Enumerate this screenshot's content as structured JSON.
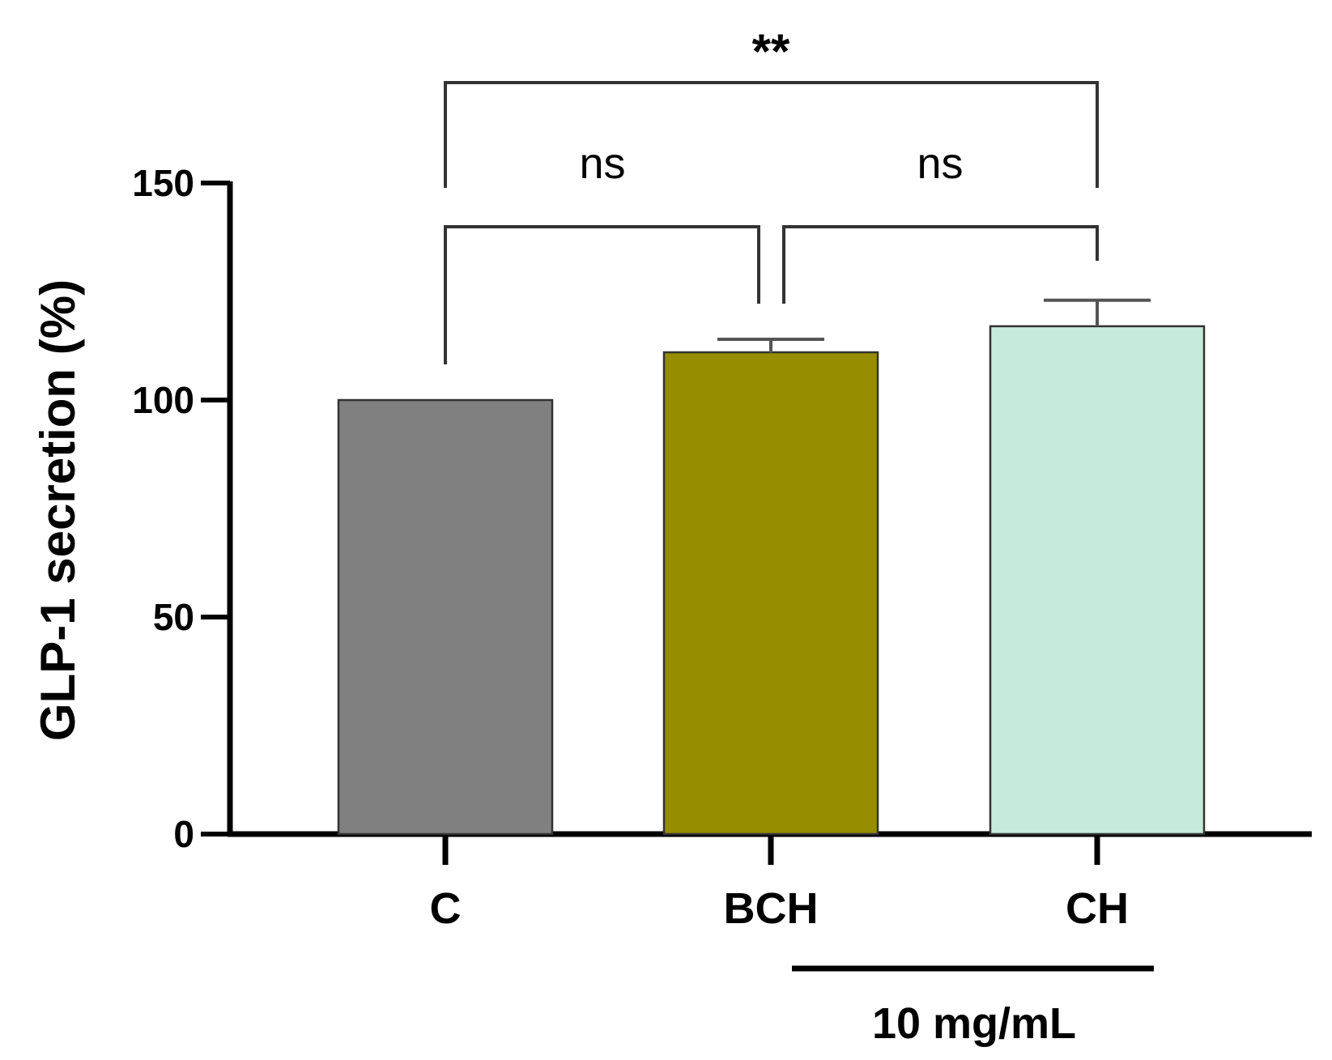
{
  "chart_data": {
    "type": "bar",
    "title": "",
    "xlabel": "",
    "ylabel": "GLP-1 secretion (%)",
    "ylim": [
      0,
      150
    ],
    "yticks": [
      0,
      50,
      100,
      150
    ],
    "categories": [
      "C",
      "BCH",
      "CH"
    ],
    "values": [
      100,
      111,
      117
    ],
    "errors": [
      0,
      3,
      6
    ],
    "colors": [
      "#808080",
      "#968E00",
      "#C4EBDC"
    ],
    "grid": false,
    "legend": "none",
    "comparisons": [
      {
        "from": "C",
        "to": "BCH",
        "label": "ns"
      },
      {
        "from": "BCH",
        "to": "CH",
        "label": "ns"
      },
      {
        "from": "C",
        "to": "CH",
        "label": "**"
      }
    ],
    "group_annotation": {
      "label": "10 mg/mL",
      "categories": [
        "BCH",
        "CH"
      ]
    }
  }
}
